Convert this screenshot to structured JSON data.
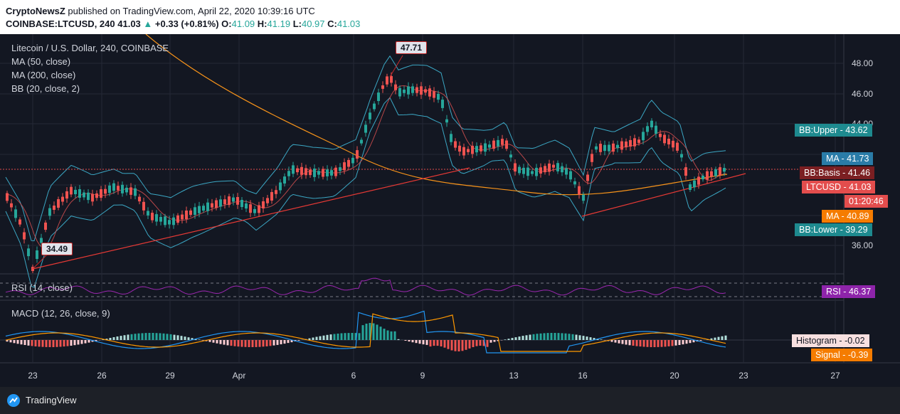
{
  "header": {
    "publisher": "CryptoNewsZ",
    "published_text": "published on TradingView.com, April 22, 2020 10:39:16 UTC",
    "symbol": "COINBASE:LTCUSD, 240",
    "last": "41.03",
    "change_arrow": "▲",
    "change": "+0.33 (+0.81%)",
    "o_label": "O:",
    "o": "41.09",
    "h_label": "H:",
    "h": "41.19",
    "l_label": "L:",
    "l": "40.97",
    "c_label": "C:",
    "c": "41.03"
  },
  "legend": {
    "title": "Litecoin / U.S. Dollar, 240, COINBASE",
    "ma50": "MA (50, close)",
    "ma200": "MA (200, close)",
    "bb": "BB (20, close, 2)",
    "rsi": "RSI (14, close)",
    "macd": "MACD (12, 26, close, 9)"
  },
  "price_axis": {
    "labels": [
      "48.00",
      "46.00",
      "44.00",
      "36.00"
    ]
  },
  "badges": {
    "bb_upper": "BB:Upper - 43.62",
    "ma": "MA - 41.73",
    "bb_basis": "BB:Basis - 41.46",
    "ltcusd": "LTCUSD - 41.03",
    "countdown": "01:20:46",
    "ma2": "MA - 40.89",
    "bb_lower": "BB:Lower - 39.29",
    "rsi": "RSI - 46.37",
    "histogram": "Histogram - -0.02",
    "signal": "Signal - -0.39"
  },
  "callouts": {
    "high": "47.71",
    "low": "34.49"
  },
  "x_axis": {
    "labels": [
      "23",
      "26",
      "29",
      "Apr",
      "6",
      "9",
      "13",
      "16",
      "20",
      "23",
      "27"
    ]
  },
  "colors": {
    "up": "#26a69a",
    "down": "#ef5350",
    "ma50": "#e05252",
    "ma200": "#f7931a",
    "bb": "#3ba7c4",
    "rsi": "#9c27b0",
    "macd": "#2196f3",
    "signal": "#ff9800"
  },
  "footer": {
    "brand": "TradingView"
  }
}
